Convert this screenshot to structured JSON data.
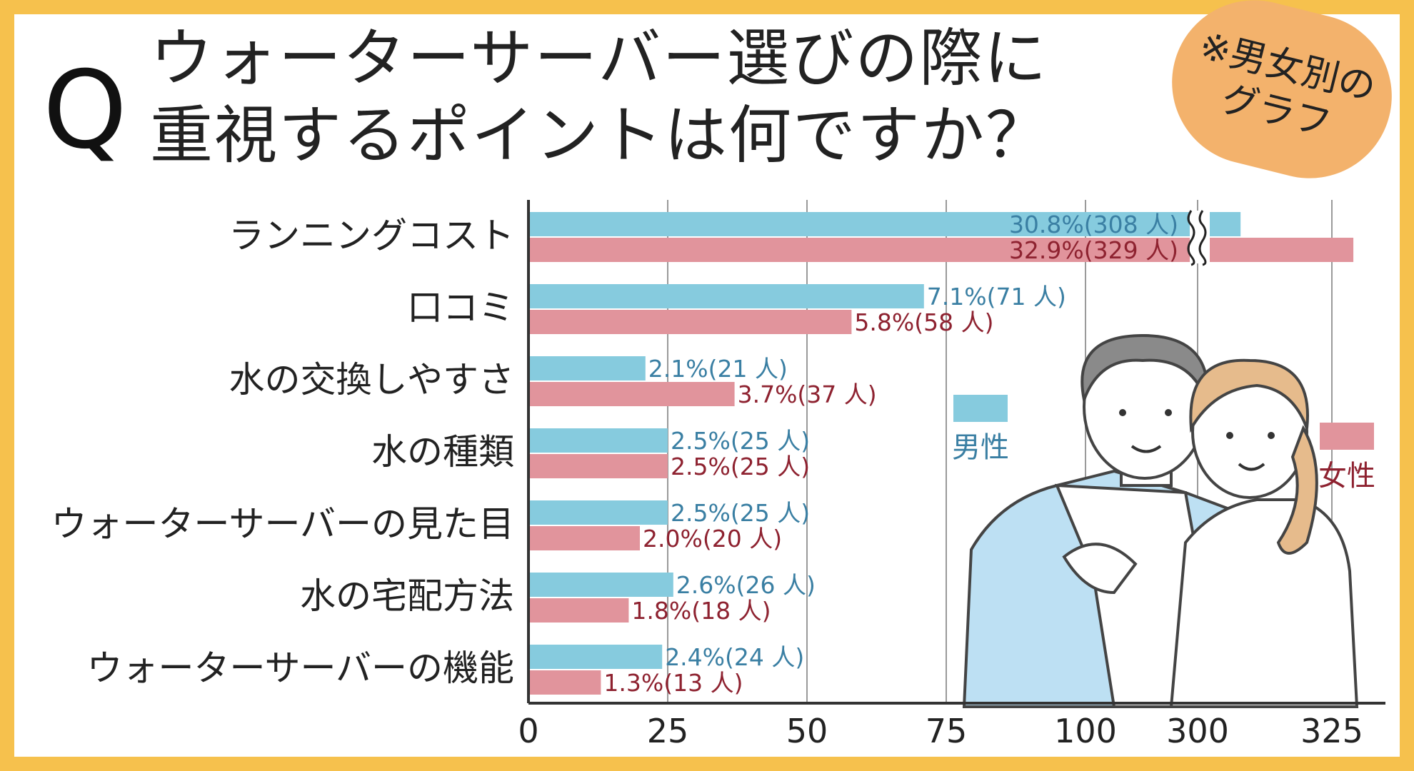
{
  "title": {
    "q": "Q",
    "line1": "ウォーターサーバー選びの際に",
    "line2": "重視するポイントは何ですか？"
  },
  "badge": {
    "line1": "※男女別の",
    "line2": "グラフ"
  },
  "legend": {
    "male": "男性",
    "female": "女性"
  },
  "colors": {
    "male": "#86cbde",
    "female": "#e1949c",
    "male_text": "#3a7fa3",
    "female_text": "#8e2230",
    "frame": "#f6c14d",
    "badge": "#f3b26c"
  },
  "chart_data": {
    "type": "bar",
    "orientation": "horizontal",
    "categories": [
      "ランニングコスト",
      "口コミ",
      "水の交換しやすさ",
      "水の種類",
      "ウォーターサーバーの見た目",
      "水の宅配方法",
      "ウォーターサーバーの機能"
    ],
    "series": [
      {
        "name": "男性",
        "values": [
          308,
          71,
          21,
          25,
          25,
          26,
          24
        ],
        "labels": [
          "30.8%(308 人)",
          "7.1%(71 人)",
          "2.1%(21 人)",
          "2.5%(25 人)",
          "2.5%(25 人)",
          "2.6%(26 人)",
          "2.4%(24 人)"
        ]
      },
      {
        "name": "女性",
        "values": [
          329,
          58,
          37,
          25,
          20,
          18,
          13
        ],
        "labels": [
          "32.9%(329 人)",
          "5.8%(58 人)",
          "3.7%(37 人)",
          "2.5%(25 人)",
          "2.0%(20 人)",
          "1.8%(18 人)",
          "1.3%(13 人)"
        ]
      }
    ],
    "x_ticks": [
      "0",
      "25",
      "50",
      "75",
      "100",
      "300",
      "325"
    ],
    "axis_break": {
      "from": 110,
      "to": 295
    },
    "xlim": [
      0,
      330
    ],
    "grid": true,
    "legend_position": "right"
  }
}
